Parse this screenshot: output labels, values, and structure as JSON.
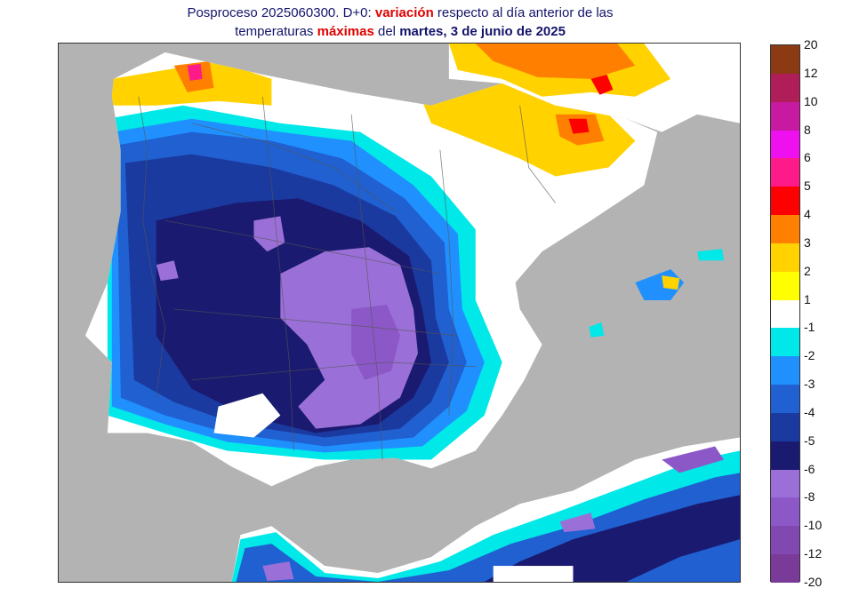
{
  "title": {
    "line1_prefix": "Posproceso 2025060300. D+0: ",
    "line1_highlight": "variación",
    "line1_suffix": " respecto al día anterior de las",
    "line2_prefix": "temperaturas ",
    "line2_highlight": "máximas",
    "line2_mid": " del ",
    "line2_bold": "martes, 3 de junio de 2025"
  },
  "colorbar": {
    "labels": [
      "20",
      "12",
      "10",
      "8",
      "6",
      "5",
      "4",
      "3",
      "2",
      "1",
      "-1",
      "-2",
      "-3",
      "-4",
      "-5",
      "-6",
      "-8",
      "-10",
      "-12",
      "-20"
    ],
    "colors": [
      "#8b3a14",
      "#b01e5a",
      "#c81aa0",
      "#ee10ee",
      "#ff1a8a",
      "#ff0000",
      "#ff8000",
      "#ffd200",
      "#ffff00",
      "#ffffff",
      "#00e8e8",
      "#2090ff",
      "#2060d0",
      "#1a3aa0",
      "#1a1a70",
      "#9a70d8",
      "#8c58c8",
      "#8048b0",
      "#7a3a98"
    ]
  },
  "map_colors": {
    "sea": "#b3b3b3",
    "land_neutral": "#ffffff",
    "border": "#555555"
  }
}
